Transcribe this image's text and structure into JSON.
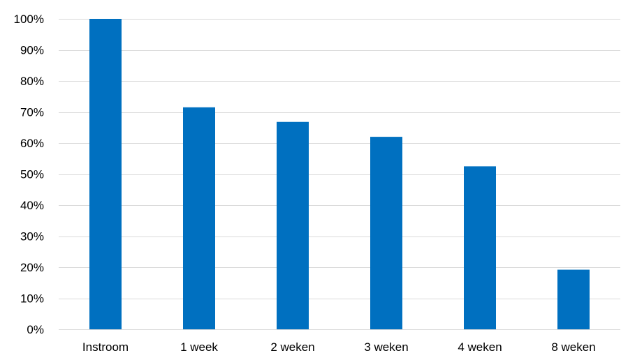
{
  "chart_data": {
    "type": "bar",
    "categories": [
      "Instroom",
      "1 week",
      "2 weken",
      "3 weken",
      "4 weken",
      "8 weken"
    ],
    "values": [
      100,
      71.5,
      66.8,
      62,
      52.5,
      19.2
    ],
    "ylim": [
      0,
      100
    ],
    "y_ticks": [
      "0%",
      "10%",
      "20%",
      "30%",
      "40%",
      "50%",
      "60%",
      "70%",
      "80%",
      "90%",
      "100%"
    ],
    "y_tick_values": [
      0,
      10,
      20,
      30,
      40,
      50,
      60,
      70,
      80,
      90,
      100
    ],
    "grid": true,
    "legend": "none",
    "bar_color": "#0070C0",
    "grid_color": "#D9D9D9"
  }
}
